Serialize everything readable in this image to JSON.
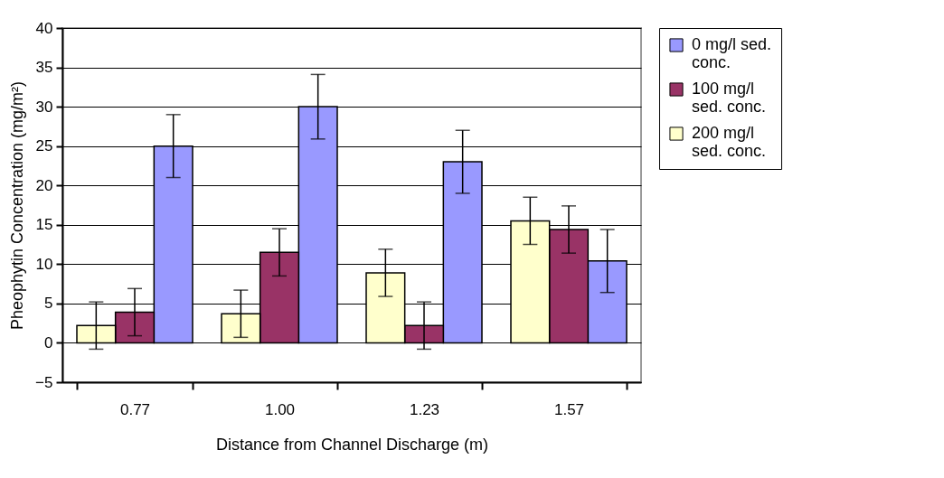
{
  "chart_data": {
    "type": "bar",
    "xlabel": "Distance from Channel Discharge (m)",
    "ylabel": "Pheophytin Concentration (mg/m²)",
    "categories": [
      "0.77",
      "1.00",
      "1.23",
      "1.57"
    ],
    "series": [
      {
        "name": "0 mg/l sed. conc.",
        "color": "#9999ff",
        "values": [
          25.0,
          30.0,
          23.0,
          10.4
        ],
        "errors": [
          4,
          4.1,
          4,
          4
        ]
      },
      {
        "name": "100 mg/l sed. conc.",
        "color": "#993366",
        "values": [
          3.9,
          11.5,
          2.2,
          14.4
        ],
        "errors": [
          3,
          3,
          3,
          3
        ]
      },
      {
        "name": "200 mg/l sed. conc.",
        "color": "#ffffcc",
        "values": [
          2.2,
          3.7,
          8.9,
          15.5
        ],
        "errors": [
          3,
          3,
          3,
          3
        ]
      }
    ],
    "ylim": [
      -5,
      40
    ],
    "yticks": [
      -5,
      0,
      5,
      10,
      15,
      20,
      25,
      30,
      35,
      40
    ],
    "grid": "y",
    "legend": "right"
  }
}
